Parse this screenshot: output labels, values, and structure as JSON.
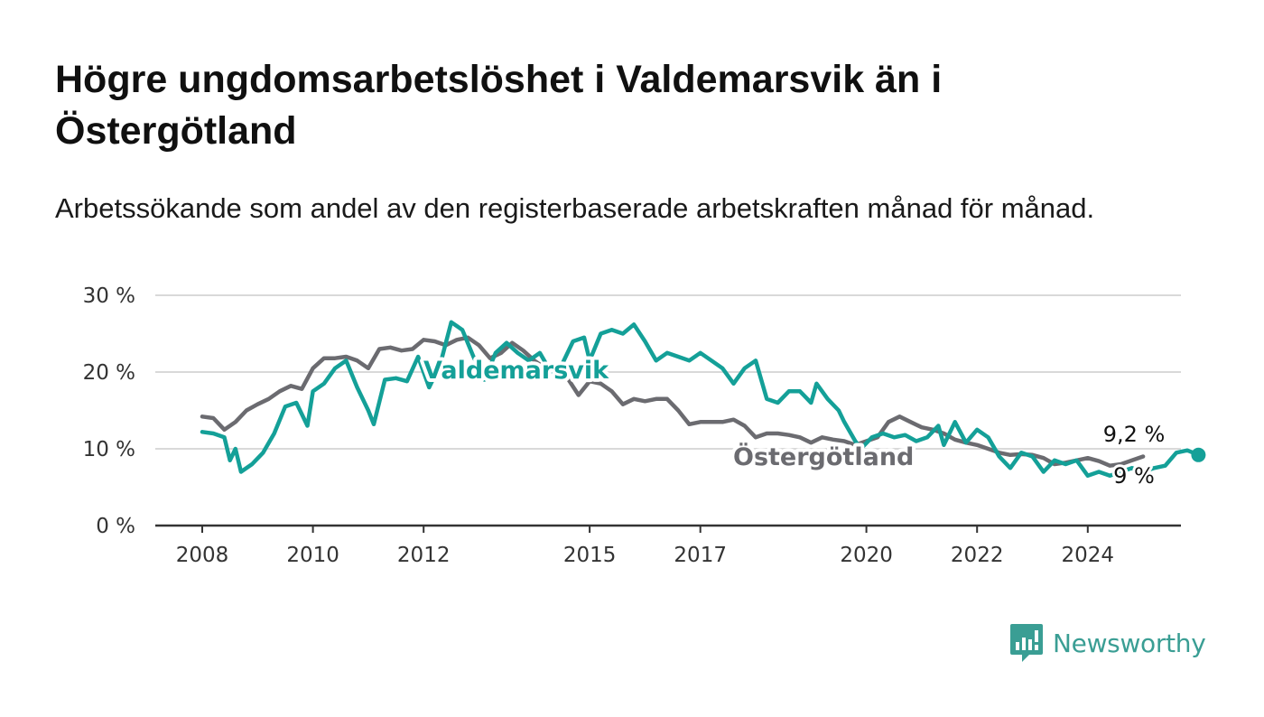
{
  "title": "Högre ungdomsarbetslöshet i Valdemarsvik än i Östergötland",
  "subtitle": "Arbetssökande som andel av den registerbaserade arbetskraften månad för månad.",
  "brand": {
    "name": "Newsworthy",
    "icon": "newsworthy-logo-icon",
    "color": "#3a9e94"
  },
  "chart_data": {
    "type": "line",
    "ylim": [
      0,
      30
    ],
    "yticks": [
      0,
      10,
      20,
      30
    ],
    "ytick_labels": [
      "0 %",
      "10 %",
      "20 %",
      "30 %"
    ],
    "xlim": [
      2008,
      2026.5
    ],
    "xticks": [
      2008,
      2010,
      2012,
      2015,
      2017,
      2020,
      2022,
      2024
    ],
    "xtick_labels": [
      "2008",
      "2010",
      "2012",
      "2015",
      "2017",
      "2020",
      "2022",
      "2024"
    ],
    "grid": true,
    "series": [
      {
        "name": "Östergötland",
        "color": "#6b6b70",
        "end_label": "9 %",
        "points": [
          [
            2008.0,
            14.2
          ],
          [
            2008.2,
            14.0
          ],
          [
            2008.4,
            12.5
          ],
          [
            2008.6,
            13.5
          ],
          [
            2008.8,
            15.0
          ],
          [
            2009.0,
            15.8
          ],
          [
            2009.2,
            16.5
          ],
          [
            2009.4,
            17.5
          ],
          [
            2009.6,
            18.2
          ],
          [
            2009.8,
            17.8
          ],
          [
            2010.0,
            20.5
          ],
          [
            2010.2,
            21.8
          ],
          [
            2010.4,
            21.8
          ],
          [
            2010.6,
            22.0
          ],
          [
            2010.8,
            21.5
          ],
          [
            2011.0,
            20.5
          ],
          [
            2011.2,
            23.0
          ],
          [
            2011.4,
            23.2
          ],
          [
            2011.6,
            22.8
          ],
          [
            2011.8,
            23.0
          ],
          [
            2012.0,
            24.2
          ],
          [
            2012.2,
            24.0
          ],
          [
            2012.4,
            23.5
          ],
          [
            2012.6,
            24.2
          ],
          [
            2012.8,
            24.5
          ],
          [
            2013.0,
            23.5
          ],
          [
            2013.2,
            21.8
          ],
          [
            2013.4,
            22.5
          ],
          [
            2013.6,
            23.8
          ],
          [
            2013.8,
            22.8
          ],
          [
            2014.0,
            21.5
          ],
          [
            2014.2,
            20.5
          ],
          [
            2014.4,
            20.0
          ],
          [
            2014.6,
            19.2
          ],
          [
            2014.8,
            17.0
          ],
          [
            2015.0,
            18.8
          ],
          [
            2015.2,
            18.5
          ],
          [
            2015.4,
            17.5
          ],
          [
            2015.6,
            15.8
          ],
          [
            2015.8,
            16.5
          ],
          [
            2016.0,
            16.2
          ],
          [
            2016.2,
            16.5
          ],
          [
            2016.4,
            16.5
          ],
          [
            2016.6,
            15.0
          ],
          [
            2016.8,
            13.2
          ],
          [
            2017.0,
            13.5
          ],
          [
            2017.2,
            13.5
          ],
          [
            2017.4,
            13.5
          ],
          [
            2017.6,
            13.8
          ],
          [
            2017.8,
            13.0
          ],
          [
            2018.0,
            11.5
          ],
          [
            2018.2,
            12.0
          ],
          [
            2018.4,
            12.0
          ],
          [
            2018.6,
            11.8
          ],
          [
            2018.8,
            11.5
          ],
          [
            2019.0,
            10.8
          ],
          [
            2019.2,
            11.5
          ],
          [
            2019.4,
            11.2
          ],
          [
            2019.6,
            11.0
          ],
          [
            2019.8,
            10.5
          ],
          [
            2020.0,
            11.0
          ],
          [
            2020.2,
            11.5
          ],
          [
            2020.4,
            13.5
          ],
          [
            2020.6,
            14.2
          ],
          [
            2020.8,
            13.5
          ],
          [
            2021.0,
            12.8
          ],
          [
            2021.2,
            12.5
          ],
          [
            2021.4,
            12.0
          ],
          [
            2021.6,
            11.2
          ],
          [
            2021.8,
            10.8
          ],
          [
            2022.0,
            10.5
          ],
          [
            2022.2,
            10.0
          ],
          [
            2022.4,
            9.5
          ],
          [
            2022.6,
            9.2
          ],
          [
            2022.8,
            9.3
          ],
          [
            2023.0,
            9.2
          ],
          [
            2023.2,
            8.8
          ],
          [
            2023.4,
            8.0
          ],
          [
            2023.6,
            8.2
          ],
          [
            2023.8,
            8.5
          ],
          [
            2024.0,
            8.8
          ],
          [
            2024.2,
            8.4
          ],
          [
            2024.4,
            7.8
          ],
          [
            2024.6,
            8.0
          ],
          [
            2024.8,
            8.5
          ],
          [
            2025.0,
            9.0
          ]
        ]
      },
      {
        "name": "Valdemarsvik",
        "color": "#14a098",
        "end_label": "9,2 %",
        "points": [
          [
            2008.0,
            12.2
          ],
          [
            2008.2,
            12.0
          ],
          [
            2008.4,
            11.5
          ],
          [
            2008.5,
            8.5
          ],
          [
            2008.6,
            10.0
          ],
          [
            2008.7,
            7.0
          ],
          [
            2008.9,
            8.0
          ],
          [
            2009.1,
            9.5
          ],
          [
            2009.3,
            12.0
          ],
          [
            2009.5,
            15.5
          ],
          [
            2009.7,
            16.0
          ],
          [
            2009.9,
            13.0
          ],
          [
            2010.0,
            17.5
          ],
          [
            2010.2,
            18.5
          ],
          [
            2010.4,
            20.5
          ],
          [
            2010.6,
            21.5
          ],
          [
            2010.8,
            18.0
          ],
          [
            2011.0,
            15.0
          ],
          [
            2011.1,
            13.2
          ],
          [
            2011.3,
            19.0
          ],
          [
            2011.5,
            19.2
          ],
          [
            2011.7,
            18.8
          ],
          [
            2011.9,
            22.0
          ],
          [
            2012.1,
            18.0
          ],
          [
            2012.3,
            21.0
          ],
          [
            2012.5,
            26.5
          ],
          [
            2012.7,
            25.5
          ],
          [
            2012.9,
            22.0
          ],
          [
            2013.1,
            19.0
          ],
          [
            2013.3,
            22.5
          ],
          [
            2013.5,
            23.8
          ],
          [
            2013.7,
            22.5
          ],
          [
            2013.9,
            21.5
          ],
          [
            2014.1,
            22.5
          ],
          [
            2014.3,
            20.0
          ],
          [
            2014.5,
            21.0
          ],
          [
            2014.7,
            24.0
          ],
          [
            2014.9,
            24.5
          ],
          [
            2015.0,
            21.5
          ],
          [
            2015.2,
            25.0
          ],
          [
            2015.4,
            25.5
          ],
          [
            2015.6,
            25.0
          ],
          [
            2015.8,
            26.2
          ],
          [
            2016.0,
            24.0
          ],
          [
            2016.2,
            21.5
          ],
          [
            2016.4,
            22.5
          ],
          [
            2016.6,
            22.0
          ],
          [
            2016.8,
            21.5
          ],
          [
            2017.0,
            22.5
          ],
          [
            2017.2,
            21.5
          ],
          [
            2017.4,
            20.5
          ],
          [
            2017.6,
            18.5
          ],
          [
            2017.8,
            20.5
          ],
          [
            2018.0,
            21.5
          ],
          [
            2018.2,
            16.5
          ],
          [
            2018.4,
            16.0
          ],
          [
            2018.6,
            17.5
          ],
          [
            2018.8,
            17.5
          ],
          [
            2019.0,
            16.0
          ],
          [
            2019.1,
            18.5
          ],
          [
            2019.3,
            16.5
          ],
          [
            2019.5,
            15.0
          ],
          [
            2019.6,
            13.5
          ],
          [
            2019.8,
            11.0
          ],
          [
            2019.9,
            10.0
          ],
          [
            2020.1,
            11.5
          ],
          [
            2020.3,
            12.0
          ],
          [
            2020.5,
            11.5
          ],
          [
            2020.7,
            11.8
          ],
          [
            2020.9,
            11.0
          ],
          [
            2021.1,
            11.5
          ],
          [
            2021.3,
            13.0
          ],
          [
            2021.4,
            10.5
          ],
          [
            2021.6,
            13.5
          ],
          [
            2021.8,
            10.8
          ],
          [
            2022.0,
            12.5
          ],
          [
            2022.2,
            11.5
          ],
          [
            2022.4,
            9.0
          ],
          [
            2022.6,
            7.5
          ],
          [
            2022.8,
            9.5
          ],
          [
            2023.0,
            9.0
          ],
          [
            2023.2,
            7.0
          ],
          [
            2023.4,
            8.5
          ],
          [
            2023.6,
            8.0
          ],
          [
            2023.8,
            8.5
          ],
          [
            2024.0,
            6.5
          ],
          [
            2024.2,
            7.0
          ],
          [
            2024.4,
            6.5
          ],
          [
            2024.6,
            7.0
          ],
          [
            2024.8,
            7.5
          ],
          [
            2025.0,
            7.0
          ],
          [
            2025.2,
            7.5
          ],
          [
            2025.4,
            7.8
          ],
          [
            2025.6,
            9.5
          ],
          [
            2025.8,
            9.8
          ],
          [
            2026.0,
            9.2
          ]
        ]
      }
    ]
  }
}
